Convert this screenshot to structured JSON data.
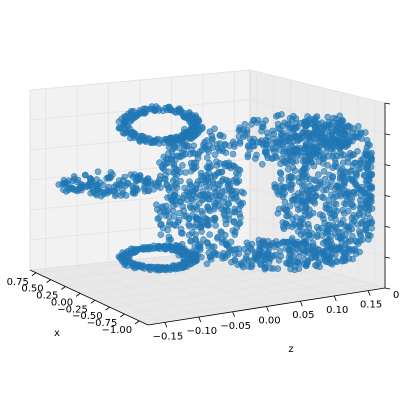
{
  "chart_data": {
    "type": "scatter",
    "projection": "3d",
    "title": "",
    "xlabel": "x",
    "ylabel": "",
    "zlabel": "z",
    "x_ticks": [
      "0.75",
      "0.50",
      "0.25",
      "0.00",
      "−0.25",
      "−0.50",
      "−0.75",
      "−1.00"
    ],
    "depth_ticks": [
      "−0.15",
      "−0.10",
      "−0.05",
      "0.00",
      "0.05",
      "0.10",
      "0.15"
    ],
    "vertical_ticks": [
      "0",
      "",
      "",
      "",
      "",
      "",
      ""
    ],
    "grid": true,
    "point_color": "#1f77b4",
    "point_alpha": 0.6,
    "approx_point_count": 2000
  }
}
